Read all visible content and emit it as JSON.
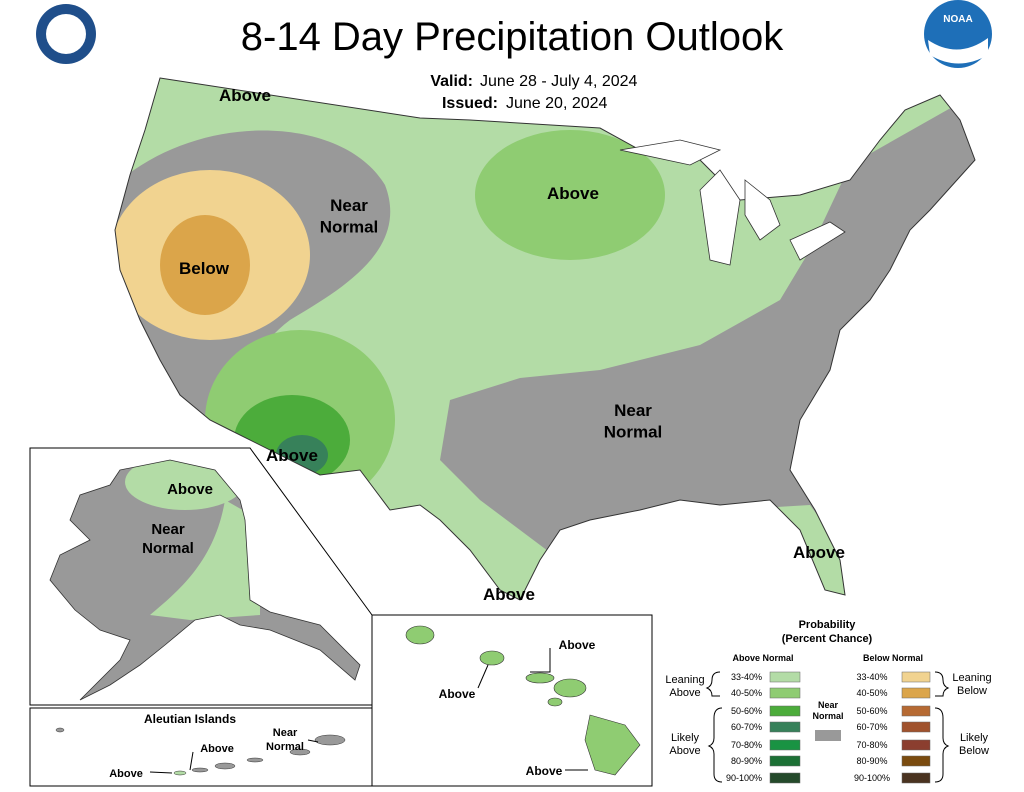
{
  "header": {
    "title": "8-14 Day Precipitation Outlook",
    "valid_label": "Valid:",
    "valid_dates": "June 28 - July 4, 2024",
    "issued_label": "Issued:",
    "issued_date": "June 20, 2024",
    "logo_text": "NOAA"
  },
  "conus_labels": [
    [
      "Above"
    ],
    [
      "Near",
      "Normal"
    ],
    [
      "Below"
    ],
    [
      "Above"
    ],
    [
      "Above"
    ],
    [
      "Near",
      "Normal"
    ],
    [
      "Above"
    ],
    [
      "Above"
    ]
  ],
  "alaska_labels": [
    [
      "Above"
    ],
    [
      "Near",
      "Normal"
    ]
  ],
  "aleutian": {
    "title": "Aleutian Islands",
    "labels": [
      [
        "Above"
      ],
      [
        "Above"
      ],
      [
        "Near",
        "Normal"
      ]
    ]
  },
  "hawaii_labels": [
    [
      "Above"
    ],
    [
      "Above"
    ],
    [
      "Above"
    ]
  ],
  "legend": {
    "title": [
      "Probability",
      "(Percent Chance)"
    ],
    "above_header": "Above Normal",
    "below_header": "Below Normal",
    "above_bins": [
      {
        "label": "33-40%",
        "color": "#b3dca6"
      },
      {
        "label": "40-50%",
        "color": "#8fcc72"
      },
      {
        "label": "50-60%",
        "color": "#4cac3b"
      },
      {
        "label": "60-70%",
        "color": "#37815a"
      },
      {
        "label": "70-80%",
        "color": "#199343"
      },
      {
        "label": "80-90%",
        "color": "#1c7035"
      },
      {
        "label": "90-100%",
        "color": "#254a2b"
      }
    ],
    "below_bins": [
      {
        "label": "33-40%",
        "color": "#f1d390"
      },
      {
        "label": "40-50%",
        "color": "#dba54a"
      },
      {
        "label": "50-60%",
        "color": "#b66a33"
      },
      {
        "label": "60-70%",
        "color": "#a0522d"
      },
      {
        "label": "70-80%",
        "color": "#8b3e2f"
      },
      {
        "label": "80-90%",
        "color": "#7a4b0f"
      },
      {
        "label": "90-100%",
        "color": "#4a3320"
      }
    ],
    "near": {
      "label": [
        "Near",
        "Normal"
      ],
      "color": "#999999"
    },
    "leaning_above": [
      "Leaning",
      "Above"
    ],
    "likely_above": [
      "Likely",
      "Above"
    ],
    "leaning_below": [
      "Leaning",
      "Below"
    ],
    "likely_below": [
      "Likely",
      "Below"
    ]
  }
}
